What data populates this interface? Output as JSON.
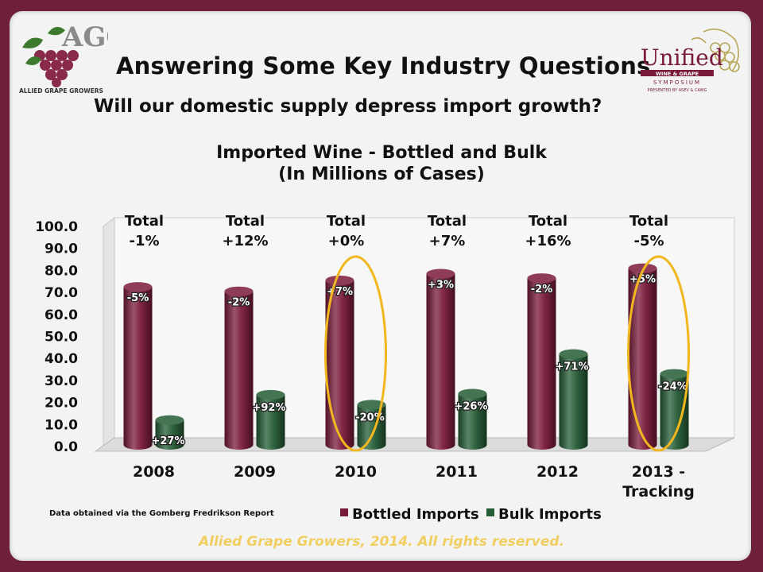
{
  "header": {
    "title": "Answering Some Key Industry Questions",
    "subtitle": "Will our domestic supply depress import growth?"
  },
  "logos": {
    "left": {
      "top_letters": "AGG",
      "name": "ALLIED GRAPE GROWERS"
    },
    "right": {
      "name": "Unified",
      "line1": "WINE & GRAPE",
      "line2": "SYMPOSIUM",
      "line3": "PRESENTED BY ASEV & CAWG"
    }
  },
  "chart_data": {
    "type": "bar",
    "title_line1": "Imported Wine - Bottled and Bulk",
    "title_line2": "(In Millions of Cases)",
    "categories": [
      [
        "2008"
      ],
      [
        "2009"
      ],
      [
        "2010"
      ],
      [
        "2011"
      ],
      [
        "2012"
      ],
      [
        "2013 -",
        "Tracking"
      ]
    ],
    "series": [
      {
        "name": "Bottled Imports",
        "color": "#7a1a3a",
        "values": [
          72.5,
          70.5,
          75.5,
          78.5,
          76.5,
          81.0
        ],
        "labels": [
          "-5%",
          "-2%",
          "+7%",
          "+3%",
          "-2%",
          "+5%"
        ]
      },
      {
        "name": "Bulk Imports",
        "color": "#245c35",
        "values": [
          12.0,
          23.5,
          19.0,
          24.0,
          42.0,
          33.0
        ],
        "labels": [
          "+27%",
          "+92%",
          "-20%",
          "+26%",
          "+71%",
          "-24%"
        ]
      }
    ],
    "totals": [
      {
        "label": "Total",
        "value": "-1%"
      },
      {
        "label": "Total",
        "value": "+12%"
      },
      {
        "label": "Total",
        "value": "+0%"
      },
      {
        "label": "Total",
        "value": "+7%"
      },
      {
        "label": "Total",
        "value": "+16%"
      },
      {
        "label": "Total",
        "value": "-5%"
      }
    ],
    "ylim": [
      0,
      100
    ],
    "yticks": [
      "0.0",
      "10.0",
      "20.0",
      "30.0",
      "40.0",
      "50.0",
      "60.0",
      "70.0",
      "80.0",
      "90.0",
      "100.0"
    ],
    "highlighted_categories": [
      "2010",
      "2013 - Tracking"
    ],
    "highlight_color": "#f2b71e",
    "source_note": "Data obtained via the Gomberg Fredrikson Report",
    "legend_position": "bottom"
  },
  "footer": "Allied Grape Growers, 2014.  All rights reserved."
}
